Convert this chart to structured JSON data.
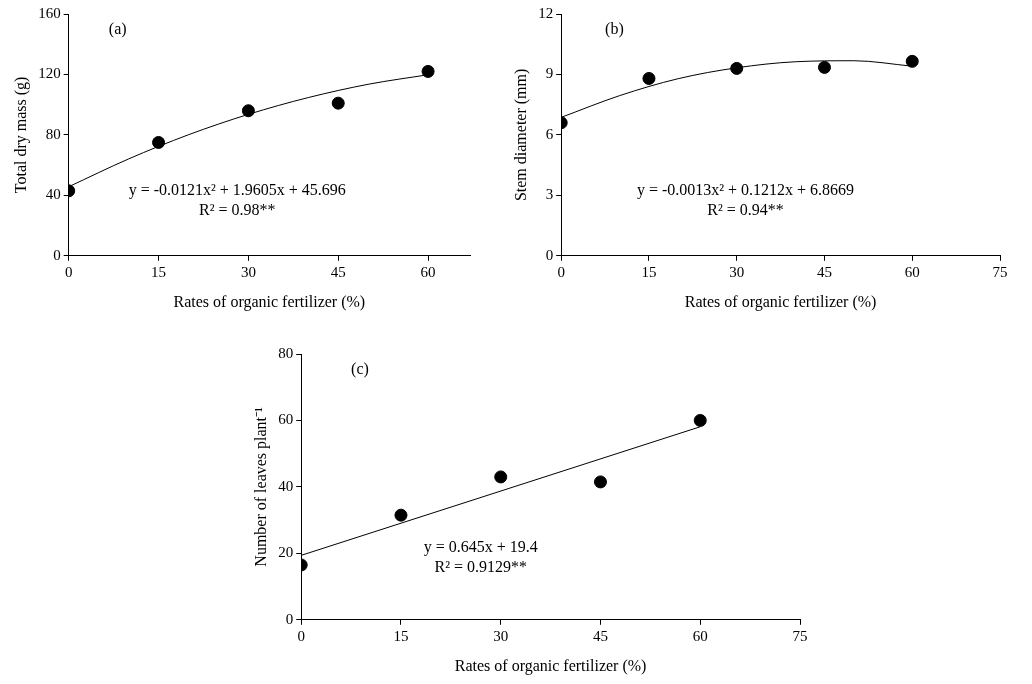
{
  "chart_data": [
    {
      "type": "scatter",
      "xlabel": "Rates of organic fertilizer (%)",
      "ylabel": "Total dry mass (g)",
      "annotations": [
        "(a)",
        "y = -0.0121x² + 1.9605x + 45.696",
        "R² = 0.98**"
      ],
      "xlim": [
        0,
        67
      ],
      "xticks": [
        0,
        15,
        30,
        45,
        60
      ],
      "ylim": [
        0,
        160
      ],
      "yticks": [
        0,
        40,
        80,
        120,
        160
      ],
      "grid": false,
      "legend": false,
      "marker": "circle",
      "series": [
        {
          "type": "scatter",
          "color": "#000000",
          "x": [
            0,
            15,
            30,
            45,
            60
          ],
          "values": [
            43,
            75,
            96,
            101,
            122
          ]
        },
        {
          "type": "line",
          "color": "#000000",
          "marker": "none",
          "x": [
            0,
            10,
            20,
            30,
            40,
            50,
            60
          ],
          "values": [
            45.7,
            64.1,
            80.1,
            93.6,
            104.7,
            113.5,
            119.8
          ]
        }
      ]
    },
    {
      "type": "scatter",
      "xlabel": "Rates of organic fertilizer (%)",
      "ylabel": "Stem diameter (mm)",
      "annotations": [
        "(b)",
        "y = -0.0013x² + 0.1212x + 6.8669",
        "R² = 0.94**"
      ],
      "xlim": [
        0,
        75
      ],
      "xticks": [
        0,
        15,
        30,
        45,
        60,
        75
      ],
      "ylim": [
        0,
        12
      ],
      "yticks": [
        0,
        3,
        6,
        9,
        12
      ],
      "grid": false,
      "legend": false,
      "marker": "circle",
      "series": [
        {
          "type": "scatter",
          "color": "#000000",
          "x": [
            0,
            15,
            30,
            45,
            60
          ],
          "values": [
            6.6,
            8.8,
            9.3,
            9.35,
            9.65
          ]
        },
        {
          "type": "line",
          "color": "#000000",
          "marker": "none",
          "x": [
            0,
            10,
            20,
            30,
            40,
            50,
            60
          ],
          "values": [
            6.87,
            7.95,
            8.79,
            9.33,
            9.63,
            9.68,
            9.41
          ]
        }
      ]
    },
    {
      "type": "scatter",
      "xlabel": "Rates of organic fertilizer (%)",
      "ylabel": "Number of leaves plant⁻¹",
      "annotations": [
        "(c)",
        "y = 0.645x + 19.4",
        "R² = 0.9129**"
      ],
      "xlim": [
        0,
        75
      ],
      "xticks": [
        0,
        15,
        30,
        45,
        60,
        75
      ],
      "ylim": [
        0,
        80
      ],
      "yticks": [
        0,
        20,
        40,
        60,
        80
      ],
      "grid": false,
      "legend": false,
      "marker": "circle",
      "series": [
        {
          "type": "scatter",
          "color": "#000000",
          "x": [
            0,
            15,
            30,
            45,
            60
          ],
          "values": [
            16.5,
            31.5,
            43,
            41.5,
            60
          ]
        },
        {
          "type": "line",
          "color": "#000000",
          "marker": "none",
          "x": [
            0,
            60
          ],
          "values": [
            19.4,
            58.1
          ]
        }
      ]
    }
  ]
}
